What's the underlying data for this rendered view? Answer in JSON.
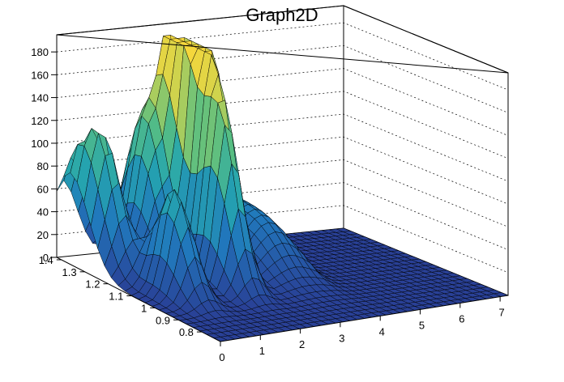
{
  "chart_data": {
    "type": "surface",
    "title": "Graph2D",
    "xlabel": "",
    "ylabel": "",
    "zlabel": "",
    "xlim": [
      0,
      7.2
    ],
    "ylim": [
      0.72,
      1.42
    ],
    "zlim": [
      0,
      195
    ],
    "x_ticks": [
      "0",
      "1",
      "2",
      "3",
      "4",
      "5",
      "6",
      "7"
    ],
    "y_ticks": [
      "0.8",
      "0.9",
      "1",
      "1.1",
      "1.2",
      "1.3",
      "1.4"
    ],
    "z_ticks": [
      "0",
      "20",
      "40",
      "60",
      "80",
      "100",
      "120",
      "140",
      "160",
      "180"
    ],
    "grid": true,
    "colormap": "viridis-like (blue to yellow)",
    "color_low": "#2a3e96",
    "color_high": "#f2d73a",
    "peaks": [
      {
        "x": 1.8,
        "y": 0.87,
        "z": 0
      },
      {
        "x": 2.3,
        "y": 1.3,
        "z": 190
      },
      {
        "x": 2.5,
        "y": 1.21,
        "z": 160
      },
      {
        "x": 2.2,
        "y": 1.09,
        "z": 140
      },
      {
        "x": 0.5,
        "y": 1.3,
        "z": 105
      },
      {
        "x": 0.9,
        "y": 1.07,
        "z": 92
      },
      {
        "x": 1.8,
        "y": 1.35,
        "z": 85
      },
      {
        "x": 0.1,
        "y": 1.37,
        "z": 75
      },
      {
        "x": 1.5,
        "y": 1.3,
        "z": 70
      }
    ]
  }
}
